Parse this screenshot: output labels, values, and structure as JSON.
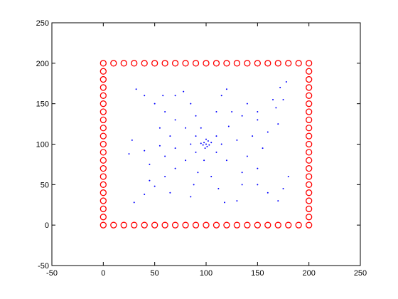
{
  "chart_data": {
    "type": "scatter",
    "xlim": [
      -50,
      250
    ],
    "ylim": [
      -50,
      250
    ],
    "xticks": [
      -50,
      0,
      50,
      100,
      150,
      200,
      250
    ],
    "yticks": [
      -50,
      0,
      50,
      100,
      150,
      200,
      250
    ],
    "grid": false,
    "series": [
      {
        "color": "#ff0000",
        "marker": "circle",
        "x": [
          0,
          10,
          20,
          30,
          40,
          50,
          60,
          70,
          80,
          90,
          100,
          110,
          120,
          130,
          140,
          150,
          160,
          170,
          180,
          190,
          200,
          200,
          200,
          200,
          200,
          200,
          200,
          200,
          200,
          200,
          200,
          200,
          200,
          200,
          200,
          200,
          200,
          200,
          200,
          200,
          200,
          190,
          180,
          170,
          160,
          150,
          140,
          130,
          120,
          110,
          100,
          90,
          80,
          70,
          60,
          50,
          40,
          30,
          20,
          10,
          0,
          0,
          0,
          0,
          0,
          0,
          0,
          0,
          0,
          0,
          0,
          0,
          0,
          0,
          0,
          0,
          0,
          0,
          0,
          0
        ],
        "y": [
          0,
          0,
          0,
          0,
          0,
          0,
          0,
          0,
          0,
          0,
          0,
          0,
          0,
          0,
          0,
          0,
          0,
          0,
          0,
          0,
          0,
          10,
          20,
          30,
          40,
          50,
          60,
          70,
          80,
          90,
          100,
          110,
          120,
          130,
          140,
          150,
          160,
          170,
          180,
          190,
          200,
          200,
          200,
          200,
          200,
          200,
          200,
          200,
          200,
          200,
          200,
          200,
          200,
          200,
          200,
          200,
          200,
          200,
          200,
          200,
          200,
          190,
          180,
          170,
          160,
          150,
          140,
          130,
          120,
          110,
          100,
          90,
          80,
          70,
          60,
          50,
          40,
          30,
          20,
          10
        ]
      },
      {
        "color": "#0000ff",
        "marker": "point",
        "x": [
          100,
          98,
          103,
          101,
          97,
          102,
          95,
          105,
          99,
          100,
          90,
          80,
          70,
          60,
          50,
          40,
          32,
          90,
          80,
          70,
          60,
          50,
          40,
          30,
          110,
          120,
          135,
          150,
          160,
          170,
          110,
          122,
          135,
          150,
          165,
          172,
          178,
          85,
          70,
          55,
          40,
          25,
          28,
          115,
          130,
          145,
          160,
          170,
          168,
          175,
          95,
          90,
          85,
          78,
          70,
          110,
          115,
          120,
          98,
          92,
          88,
          85,
          105,
          112,
          118,
          130,
          55,
          45,
          60,
          140,
          150,
          155,
          65,
          125,
          140,
          180,
          175,
          65,
          45,
          58,
          135,
          150
        ],
        "y": [
          100,
          102,
          99,
          97,
          99,
          104,
          101,
          102,
          95,
          106,
          110,
          120,
          130,
          140,
          150,
          160,
          168,
          90,
          80,
          70,
          60,
          48,
          38,
          28,
          90,
          80,
          65,
          50,
          40,
          30,
          110,
          122,
          135,
          140,
          155,
          170,
          177,
          100,
          95,
          98,
          92,
          88,
          105,
          100,
          105,
          110,
          115,
          125,
          145,
          155,
          120,
          135,
          150,
          165,
          160,
          140,
          160,
          168,
          80,
          65,
          50,
          35,
          60,
          45,
          28,
          30,
          120,
          75,
          85,
          85,
          70,
          95,
          110,
          140,
          150,
          60,
          45,
          40,
          55,
          160,
          50,
          130
        ]
      }
    ]
  }
}
